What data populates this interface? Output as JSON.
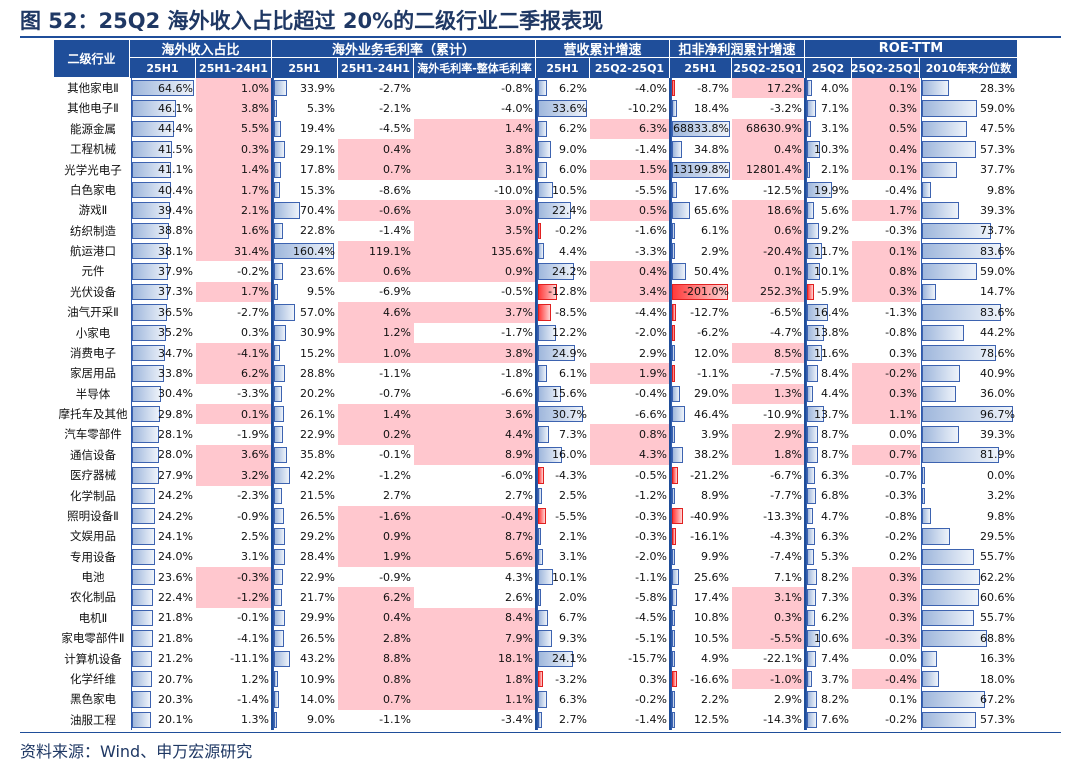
{
  "title": "图 52：25Q2 海外收入占比超过 20%的二级行业二季报表现",
  "source": "资料来源：Wind、申万宏源研究",
  "chart_data": {
    "type": "table",
    "row_header": "二级行业",
    "groups": [
      {
        "label": "海外收入占比",
        "sub": [
          "25H1",
          "25H1-24H1"
        ]
      },
      {
        "label": "海外业务毛利率（累计）",
        "sub": [
          "25H1",
          "25H1-24H1",
          "海外毛利率-整体毛利率"
        ]
      },
      {
        "label": "营收累计增速",
        "sub": [
          "25H1",
          "25Q2-25Q1"
        ]
      },
      {
        "label": "扣非净利润累计增速",
        "sub": [
          "25H1",
          "25Q2-25Q1"
        ]
      },
      {
        "label": "ROE-TTM",
        "sub": [
          "25Q2",
          "25Q2-25Q1",
          "2010年来分位数"
        ]
      }
    ],
    "columns": [
      {
        "group": 0,
        "bar": true,
        "maxAbs": 65
      },
      {
        "group": 0,
        "bar": false,
        "hl": [
          0,
          1,
          2,
          3,
          4,
          5,
          6,
          7,
          8,
          10,
          13,
          14,
          16,
          18,
          19,
          24,
          25
        ]
      },
      {
        "group": 1,
        "bar": true,
        "maxAbs": 165
      },
      {
        "group": 1,
        "bar": false,
        "hl": [
          3,
          4,
          6,
          8,
          9,
          11,
          12,
          13,
          16,
          17,
          21,
          22,
          23,
          25,
          26,
          27,
          28,
          29,
          30
        ]
      },
      {
        "group": 1,
        "bar": false,
        "hl": [
          2,
          3,
          4,
          6,
          7,
          8,
          9,
          11,
          13,
          16,
          17,
          18,
          21,
          22,
          23,
          26,
          27,
          28,
          29,
          30
        ]
      },
      {
        "group": 2,
        "bar": true,
        "maxAbs": 34,
        "sepRight": false
      },
      {
        "group": 2,
        "bar": false,
        "hl": [
          2,
          4,
          6,
          9,
          10,
          14,
          17,
          18
        ]
      },
      {
        "group": 3,
        "bar": true,
        "maxAbs": 210
      },
      {
        "group": 3,
        "bar": false,
        "hl": [
          0,
          2,
          3,
          4,
          6,
          7,
          8,
          9,
          10,
          13,
          15,
          17,
          18,
          25,
          26,
          27,
          29
        ]
      },
      {
        "group": 4,
        "bar": true,
        "maxAbs": 34
      },
      {
        "group": 4,
        "bar": false,
        "hl": [
          0,
          1,
          2,
          3,
          4,
          6,
          8,
          9,
          10,
          14,
          15,
          16,
          18,
          24,
          25,
          26,
          27,
          29
        ]
      },
      {
        "group": 4,
        "bar": true,
        "maxAbs": 100
      }
    ],
    "rows": [
      {
        "name": "其他家电Ⅱ",
        "v": [
          "64.6%",
          "1.0%",
          "33.9%",
          "-2.7%",
          "-0.8%",
          "6.2%",
          "-4.0%",
          "-8.7%",
          "17.2%",
          "4.0%",
          "0.1%",
          "28.3%"
        ]
      },
      {
        "name": "其他电子Ⅱ",
        "v": [
          "46.1%",
          "3.8%",
          "5.3%",
          "-2.1%",
          "-4.0%",
          "33.6%",
          "-10.2%",
          "18.4%",
          "-3.2%",
          "7.1%",
          "0.3%",
          "59.0%"
        ]
      },
      {
        "name": "能源金属",
        "v": [
          "44.4%",
          "5.5%",
          "19.4%",
          "-4.5%",
          "1.4%",
          "6.2%",
          "6.3%",
          "68833.8%",
          "68630.9%",
          "3.1%",
          "0.5%",
          "47.5%"
        ]
      },
      {
        "name": "工程机械",
        "v": [
          "41.5%",
          "0.3%",
          "29.1%",
          "0.4%",
          "3.8%",
          "9.0%",
          "-1.4%",
          "34.8%",
          "0.4%",
          "10.3%",
          "0.4%",
          "57.3%"
        ]
      },
      {
        "name": "光学光电子",
        "v": [
          "41.1%",
          "1.4%",
          "17.8%",
          "0.7%",
          "3.1%",
          "6.0%",
          "1.5%",
          "13199.8%",
          "12801.4%",
          "2.1%",
          "0.1%",
          "37.7%"
        ]
      },
      {
        "name": "白色家电",
        "v": [
          "40.4%",
          "1.7%",
          "15.3%",
          "-8.6%",
          "-10.0%",
          "10.5%",
          "-5.5%",
          "17.6%",
          "-12.5%",
          "19.9%",
          "-0.4%",
          "9.8%"
        ]
      },
      {
        "name": "游戏Ⅱ",
        "v": [
          "39.4%",
          "2.1%",
          "70.4%",
          "-0.6%",
          "3.0%",
          "22.4%",
          "0.5%",
          "65.6%",
          "18.6%",
          "5.6%",
          "1.7%",
          "39.3%"
        ]
      },
      {
        "name": "纺织制造",
        "v": [
          "38.8%",
          "1.6%",
          "22.8%",
          "-1.4%",
          "3.5%",
          "-0.2%",
          "-1.6%",
          "6.1%",
          "0.6%",
          "9.2%",
          "-0.3%",
          "73.7%"
        ]
      },
      {
        "name": "航运港口",
        "v": [
          "38.1%",
          "31.4%",
          "160.4%",
          "119.1%",
          "135.6%",
          "4.4%",
          "-3.3%",
          "2.9%",
          "-20.4%",
          "11.7%",
          "0.1%",
          "83.6%"
        ]
      },
      {
        "name": "元件",
        "v": [
          "37.9%",
          "-0.2%",
          "23.6%",
          "0.6%",
          "0.9%",
          "24.2%",
          "0.4%",
          "50.4%",
          "0.1%",
          "10.1%",
          "0.8%",
          "59.0%"
        ]
      },
      {
        "name": "光伏设备",
        "v": [
          "37.3%",
          "1.7%",
          "9.5%",
          "-6.9%",
          "-0.5%",
          "-12.8%",
          "3.4%",
          "-201.0%",
          "252.3%",
          "-5.9%",
          "0.3%",
          "14.7%"
        ]
      },
      {
        "name": "油气开采Ⅱ",
        "v": [
          "36.5%",
          "-2.7%",
          "57.0%",
          "4.6%",
          "3.7%",
          "-8.5%",
          "-4.4%",
          "-12.7%",
          "-6.5%",
          "16.4%",
          "-1.3%",
          "83.6%"
        ]
      },
      {
        "name": "小家电",
        "v": [
          "35.2%",
          "0.3%",
          "30.9%",
          "1.2%",
          "-1.7%",
          "12.2%",
          "-2.0%",
          "-6.2%",
          "-4.7%",
          "13.8%",
          "-0.8%",
          "44.2%"
        ]
      },
      {
        "name": "消费电子",
        "v": [
          "34.7%",
          "-4.1%",
          "15.2%",
          "1.0%",
          "3.8%",
          "24.9%",
          "2.9%",
          "12.0%",
          "8.5%",
          "11.6%",
          "0.3%",
          "78.6%"
        ]
      },
      {
        "name": "家居用品",
        "v": [
          "33.8%",
          "6.2%",
          "28.8%",
          "-1.1%",
          "-1.8%",
          "6.1%",
          "1.9%",
          "-1.1%",
          "-7.5%",
          "8.4%",
          "-0.2%",
          "40.9%"
        ]
      },
      {
        "name": "半导体",
        "v": [
          "30.4%",
          "-3.3%",
          "20.2%",
          "-0.7%",
          "-6.6%",
          "15.6%",
          "-0.4%",
          "29.0%",
          "1.3%",
          "4.4%",
          "0.3%",
          "36.0%"
        ]
      },
      {
        "name": "摩托车及其他",
        "v": [
          "29.8%",
          "0.1%",
          "26.1%",
          "1.4%",
          "3.6%",
          "30.7%",
          "-6.6%",
          "46.4%",
          "-10.9%",
          "13.7%",
          "1.1%",
          "96.7%"
        ]
      },
      {
        "name": "汽车零部件",
        "v": [
          "28.1%",
          "-1.9%",
          "22.9%",
          "0.2%",
          "4.4%",
          "7.3%",
          "0.8%",
          "3.9%",
          "2.9%",
          "8.7%",
          "0.0%",
          "39.3%"
        ]
      },
      {
        "name": "通信设备",
        "v": [
          "28.0%",
          "3.6%",
          "35.8%",
          "-0.1%",
          "8.9%",
          "16.0%",
          "4.3%",
          "38.2%",
          "1.8%",
          "8.7%",
          "0.7%",
          "81.9%"
        ]
      },
      {
        "name": "医疗器械",
        "v": [
          "27.9%",
          "3.2%",
          "42.2%",
          "-1.2%",
          "-6.0%",
          "-4.3%",
          "-0.5%",
          "-21.2%",
          "-6.7%",
          "6.3%",
          "-0.7%",
          "0.0%"
        ]
      },
      {
        "name": "化学制品",
        "v": [
          "24.2%",
          "-2.3%",
          "21.5%",
          "2.7%",
          "2.7%",
          "2.5%",
          "-1.2%",
          "8.9%",
          "-7.7%",
          "6.8%",
          "-0.3%",
          "3.2%"
        ]
      },
      {
        "name": "照明设备Ⅱ",
        "v": [
          "24.2%",
          "-0.9%",
          "26.5%",
          "-1.6%",
          "-0.4%",
          "-5.5%",
          "-0.3%",
          "-40.9%",
          "-13.3%",
          "4.7%",
          "-0.8%",
          "9.8%"
        ]
      },
      {
        "name": "文娱用品",
        "v": [
          "24.1%",
          "2.5%",
          "29.2%",
          "0.9%",
          "8.7%",
          "2.1%",
          "-0.3%",
          "-16.1%",
          "-4.3%",
          "6.3%",
          "-0.2%",
          "29.5%"
        ]
      },
      {
        "name": "专用设备",
        "v": [
          "24.0%",
          "3.1%",
          "28.4%",
          "1.9%",
          "5.6%",
          "3.1%",
          "-2.0%",
          "9.9%",
          "-7.4%",
          "5.3%",
          "0.2%",
          "55.7%"
        ]
      },
      {
        "name": "电池",
        "v": [
          "23.6%",
          "-0.3%",
          "22.9%",
          "-0.9%",
          "4.3%",
          "10.1%",
          "-1.1%",
          "25.6%",
          "7.1%",
          "8.2%",
          "0.3%",
          "62.2%"
        ]
      },
      {
        "name": "农化制品",
        "v": [
          "22.4%",
          "-1.2%",
          "21.7%",
          "6.2%",
          "2.6%",
          "2.0%",
          "-5.8%",
          "17.4%",
          "3.1%",
          "7.3%",
          "0.3%",
          "60.6%"
        ]
      },
      {
        "name": "电机Ⅱ",
        "v": [
          "21.8%",
          "-0.1%",
          "29.9%",
          "0.4%",
          "8.4%",
          "6.7%",
          "-4.5%",
          "10.8%",
          "0.3%",
          "6.2%",
          "0.3%",
          "55.7%"
        ]
      },
      {
        "name": "家电零部件Ⅱ",
        "v": [
          "21.8%",
          "-4.1%",
          "26.5%",
          "2.8%",
          "7.9%",
          "9.3%",
          "-5.1%",
          "10.5%",
          "-5.5%",
          "10.6%",
          "-0.3%",
          "68.8%"
        ]
      },
      {
        "name": "计算机设备",
        "v": [
          "21.2%",
          "-11.1%",
          "43.2%",
          "8.8%",
          "18.1%",
          "24.1%",
          "-15.7%",
          "4.9%",
          "-22.1%",
          "7.4%",
          "0.0%",
          "16.3%"
        ]
      },
      {
        "name": "化学纤维",
        "v": [
          "20.7%",
          "1.2%",
          "10.9%",
          "0.8%",
          "1.8%",
          "-3.2%",
          "0.3%",
          "-16.6%",
          "-1.0%",
          "3.7%",
          "-0.4%",
          "18.0%"
        ]
      },
      {
        "name": "黑色家电",
        "v": [
          "20.3%",
          "-1.4%",
          "14.0%",
          "0.7%",
          "1.1%",
          "6.3%",
          "-0.2%",
          "2.2%",
          "2.9%",
          "8.2%",
          "0.1%",
          "67.2%"
        ]
      },
      {
        "name": "油服工程",
        "v": [
          "20.1%",
          "1.3%",
          "9.0%",
          "-1.1%",
          "-3.4%",
          "2.7%",
          "-1.4%",
          "12.5%",
          "-14.3%",
          "7.6%",
          "-0.2%",
          "57.3%"
        ]
      }
    ]
  }
}
